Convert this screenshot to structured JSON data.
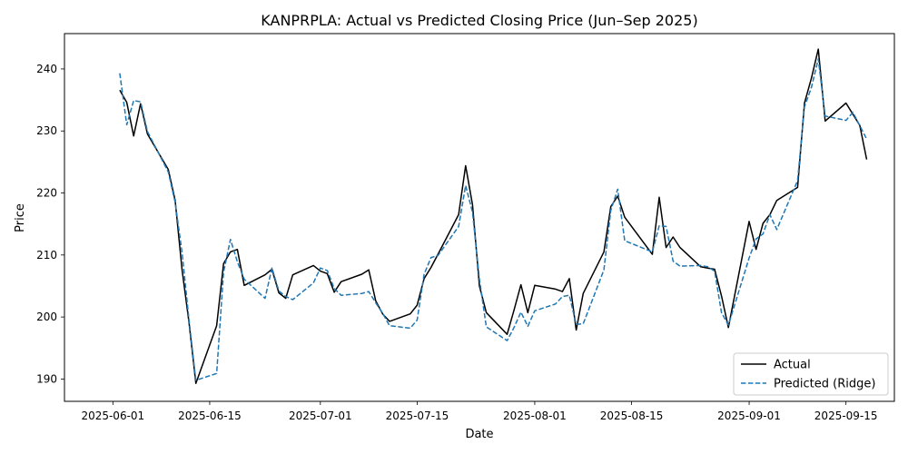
{
  "chart_data": {
    "type": "line",
    "title": "KANPRPLA: Actual vs Predicted Closing Price (Jun–Sep 2025)",
    "xlabel": "Date",
    "ylabel": "Price",
    "x_ticks": [
      "2025-06-01",
      "2025-06-15",
      "2025-07-01",
      "2025-07-15",
      "2025-08-01",
      "2025-08-15",
      "2025-09-01",
      "2025-09-15"
    ],
    "y_ticks": [
      190,
      200,
      210,
      220,
      230,
      240
    ],
    "xlim": [
      "2025-05-25",
      "2025-09-22"
    ],
    "ylim": [
      186.4,
      245.7
    ],
    "grid": false,
    "legend_position": "lower-right",
    "series": [
      {
        "name": "Actual",
        "color": "#000000",
        "style": "solid",
        "points": [
          [
            "2025-06-02",
            236.6
          ],
          [
            "2025-06-03",
            234.6
          ],
          [
            "2025-06-04",
            229.2
          ],
          [
            "2025-06-05",
            234.4
          ],
          [
            "2025-06-06",
            229.5
          ],
          [
            "2025-06-09",
            223.8
          ],
          [
            "2025-06-10",
            218.8
          ],
          [
            "2025-06-11",
            207.6
          ],
          [
            "2025-06-12",
            199.2
          ],
          [
            "2025-06-13",
            189.3
          ],
          [
            "2025-06-16",
            198.6
          ],
          [
            "2025-06-17",
            208.6
          ],
          [
            "2025-06-18",
            210.5
          ],
          [
            "2025-06-19",
            210.9
          ],
          [
            "2025-06-20",
            205.1
          ],
          [
            "2025-06-23",
            206.8
          ],
          [
            "2025-06-24",
            207.7
          ],
          [
            "2025-06-25",
            203.9
          ],
          [
            "2025-06-26",
            203.0
          ],
          [
            "2025-06-27",
            206.8
          ],
          [
            "2025-06-30",
            208.3
          ],
          [
            "2025-07-01",
            207.4
          ],
          [
            "2025-07-02",
            207.0
          ],
          [
            "2025-07-03",
            204.0
          ],
          [
            "2025-07-04",
            205.7
          ],
          [
            "2025-07-07",
            206.9
          ],
          [
            "2025-07-08",
            207.6
          ],
          [
            "2025-07-09",
            202.6
          ],
          [
            "2025-07-10",
            200.5
          ],
          [
            "2025-07-11",
            199.3
          ],
          [
            "2025-07-14",
            200.5
          ],
          [
            "2025-07-15",
            201.9
          ],
          [
            "2025-07-16",
            206.2
          ],
          [
            "2025-07-17",
            208.0
          ],
          [
            "2025-07-18",
            210.1
          ],
          [
            "2025-07-21",
            216.5
          ],
          [
            "2025-07-22",
            224.4
          ],
          [
            "2025-07-23",
            218.1
          ],
          [
            "2025-07-24",
            205.0
          ],
          [
            "2025-07-25",
            200.7
          ],
          [
            "2025-07-28",
            197.2
          ],
          [
            "2025-07-29",
            201.1
          ],
          [
            "2025-07-30",
            205.2
          ],
          [
            "2025-07-31",
            200.7
          ],
          [
            "2025-08-01",
            205.1
          ],
          [
            "2025-08-04",
            204.5
          ],
          [
            "2025-08-05",
            204.1
          ],
          [
            "2025-08-06",
            206.2
          ],
          [
            "2025-08-07",
            197.9
          ],
          [
            "2025-08-08",
            203.8
          ],
          [
            "2025-08-11",
            210.5
          ],
          [
            "2025-08-12",
            217.8
          ],
          [
            "2025-08-13",
            219.5
          ],
          [
            "2025-08-14",
            216.1
          ],
          [
            "2025-08-18",
            210.1
          ],
          [
            "2025-08-19",
            219.3
          ],
          [
            "2025-08-20",
            211.2
          ],
          [
            "2025-08-21",
            212.9
          ],
          [
            "2025-08-22",
            211.2
          ],
          [
            "2025-08-25",
            208.1
          ],
          [
            "2025-08-26",
            207.9
          ],
          [
            "2025-08-27",
            207.7
          ],
          [
            "2025-08-28",
            203.4
          ],
          [
            "2025-08-29",
            198.3
          ],
          [
            "2025-09-01",
            215.4
          ],
          [
            "2025-09-02",
            210.9
          ],
          [
            "2025-09-03",
            215.1
          ],
          [
            "2025-09-04",
            216.5
          ],
          [
            "2025-09-05",
            218.8
          ],
          [
            "2025-09-08",
            220.9
          ],
          [
            "2025-09-09",
            234.5
          ],
          [
            "2025-09-10",
            238.5
          ],
          [
            "2025-09-11",
            243.2
          ],
          [
            "2025-09-12",
            231.6
          ],
          [
            "2025-09-15",
            234.5
          ],
          [
            "2025-09-17",
            230.9
          ],
          [
            "2025-09-18",
            225.4
          ]
        ]
      },
      {
        "name": "Predicted (Ridge)",
        "color": "#1f77b4",
        "style": "dashed",
        "points": [
          [
            "2025-06-02",
            239.3
          ],
          [
            "2025-06-03",
            231.0
          ],
          [
            "2025-06-04",
            234.9
          ],
          [
            "2025-06-05",
            234.7
          ],
          [
            "2025-06-06",
            229.9
          ],
          [
            "2025-06-09",
            223.4
          ],
          [
            "2025-06-10",
            218.5
          ],
          [
            "2025-06-11",
            210.4
          ],
          [
            "2025-06-12",
            199.6
          ],
          [
            "2025-06-13",
            189.8
          ],
          [
            "2025-06-16",
            190.9
          ],
          [
            "2025-06-17",
            207.2
          ],
          [
            "2025-06-18",
            212.5
          ],
          [
            "2025-06-19",
            208.9
          ],
          [
            "2025-06-20",
            206.1
          ],
          [
            "2025-06-23",
            203.0
          ],
          [
            "2025-06-24",
            207.9
          ],
          [
            "2025-06-25",
            204.2
          ],
          [
            "2025-06-26",
            203.3
          ],
          [
            "2025-06-27",
            202.8
          ],
          [
            "2025-06-30",
            205.5
          ],
          [
            "2025-07-01",
            207.9
          ],
          [
            "2025-07-02",
            207.5
          ],
          [
            "2025-07-03",
            204.6
          ],
          [
            "2025-07-04",
            203.5
          ],
          [
            "2025-07-07",
            203.8
          ],
          [
            "2025-07-08",
            204.1
          ],
          [
            "2025-07-09",
            202.3
          ],
          [
            "2025-07-10",
            200.6
          ],
          [
            "2025-07-11",
            198.6
          ],
          [
            "2025-07-14",
            198.2
          ],
          [
            "2025-07-15",
            199.5
          ],
          [
            "2025-07-16",
            206.9
          ],
          [
            "2025-07-17",
            209.6
          ],
          [
            "2025-07-18",
            209.9
          ],
          [
            "2025-07-21",
            214.6
          ],
          [
            "2025-07-22",
            221.2
          ],
          [
            "2025-07-23",
            216.9
          ],
          [
            "2025-07-24",
            206.1
          ],
          [
            "2025-07-25",
            198.4
          ],
          [
            "2025-07-28",
            196.2
          ],
          [
            "2025-07-29",
            198.3
          ],
          [
            "2025-07-30",
            200.8
          ],
          [
            "2025-07-31",
            198.5
          ],
          [
            "2025-08-01",
            201.0
          ],
          [
            "2025-08-04",
            202.1
          ],
          [
            "2025-08-05",
            203.3
          ],
          [
            "2025-08-06",
            203.5
          ],
          [
            "2025-08-07",
            198.8
          ],
          [
            "2025-08-08",
            198.9
          ],
          [
            "2025-08-11",
            207.6
          ],
          [
            "2025-08-12",
            217.2
          ],
          [
            "2025-08-13",
            220.6
          ],
          [
            "2025-08-14",
            212.3
          ],
          [
            "2025-08-18",
            210.5
          ],
          [
            "2025-08-19",
            214.7
          ],
          [
            "2025-08-20",
            214.6
          ],
          [
            "2025-08-21",
            209.0
          ],
          [
            "2025-08-22",
            208.2
          ],
          [
            "2025-08-25",
            208.3
          ],
          [
            "2025-08-26",
            208.1
          ],
          [
            "2025-08-27",
            207.4
          ],
          [
            "2025-08-28",
            200.7
          ],
          [
            "2025-08-29",
            198.7
          ],
          [
            "2025-09-01",
            209.5
          ],
          [
            "2025-09-02",
            212.6
          ],
          [
            "2025-09-03",
            213.4
          ],
          [
            "2025-09-04",
            216.5
          ],
          [
            "2025-09-05",
            214.1
          ],
          [
            "2025-09-08",
            222.0
          ],
          [
            "2025-09-09",
            233.9
          ],
          [
            "2025-09-10",
            237.0
          ],
          [
            "2025-09-11",
            241.6
          ],
          [
            "2025-09-12",
            232.4
          ],
          [
            "2025-09-15",
            231.7
          ],
          [
            "2025-09-16",
            233.0
          ],
          [
            "2025-09-18",
            228.7
          ]
        ]
      }
    ]
  }
}
